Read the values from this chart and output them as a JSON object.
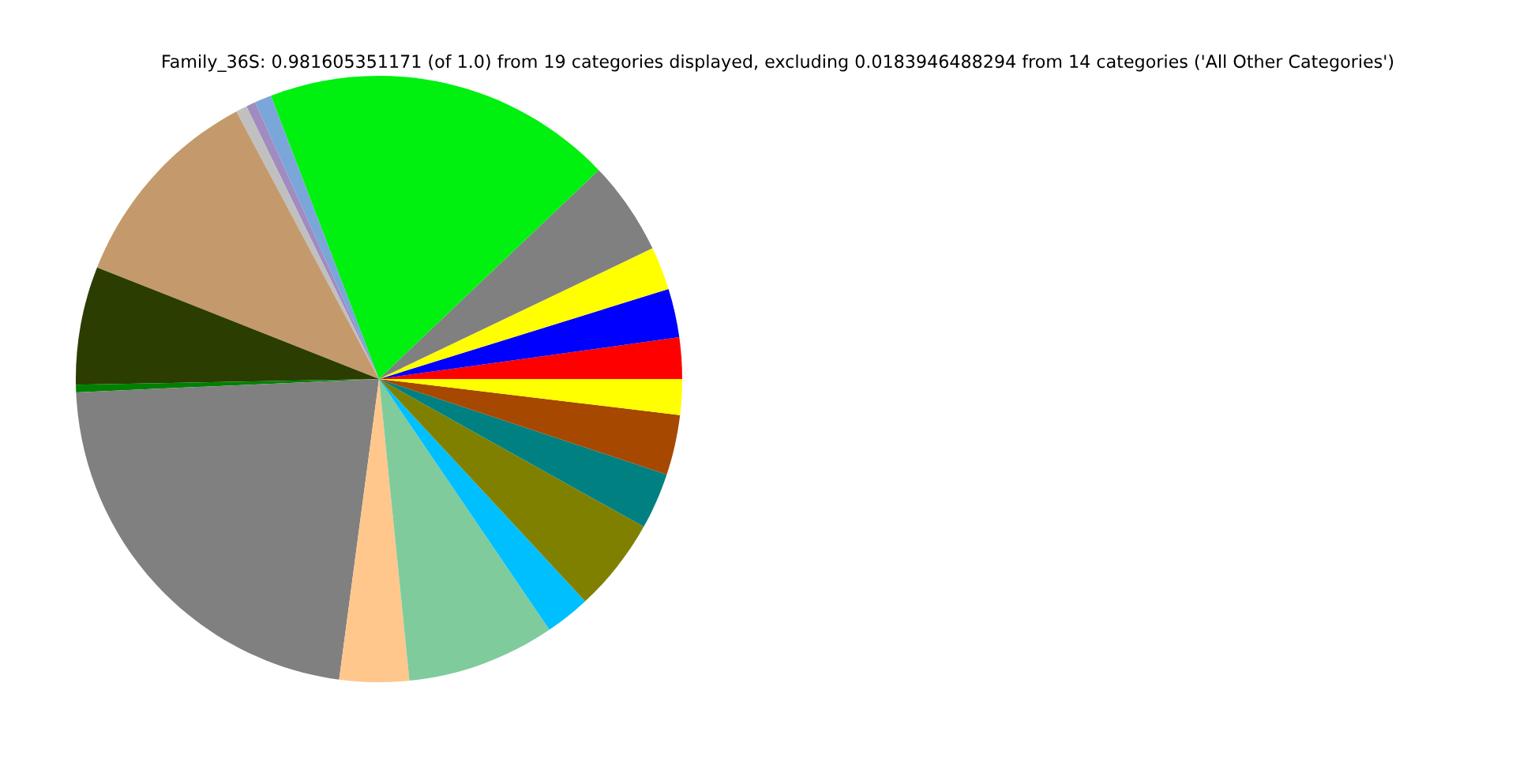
{
  "chart_data": {
    "type": "pie",
    "title": "Family_36S: 0.981605351171 (of 1.0) from 19 categories displayed, excluding 0.0183946488294 from 14 categories ('All Other Categories')",
    "categories": [
      null,
      null,
      null,
      null,
      null,
      null,
      null,
      null,
      null,
      null,
      null,
      null,
      null,
      null,
      null,
      null,
      null,
      null,
      null
    ],
    "values": [
      2.2,
      2.6,
      2.3,
      5.0,
      18.7,
      0.9,
      0.5,
      0.6,
      11.2,
      6.3,
      0.4,
      22.2,
      3.7,
      7.9,
      2.4,
      5.0,
      3.0,
      3.2,
      1.9
    ],
    "colors": [
      "#ff0000",
      "#0000ff",
      "#ffff00",
      "#808080",
      "#00f010",
      "#7aa6da",
      "#a08cc0",
      "#c0c0c0",
      "#c49a6c",
      "#2b3d00",
      "#008000",
      "#808080",
      "#ffc78c",
      "#80cb9c",
      "#00bfff",
      "#808000",
      "#008080",
      "#a64800",
      "#ffff00"
    ]
  }
}
